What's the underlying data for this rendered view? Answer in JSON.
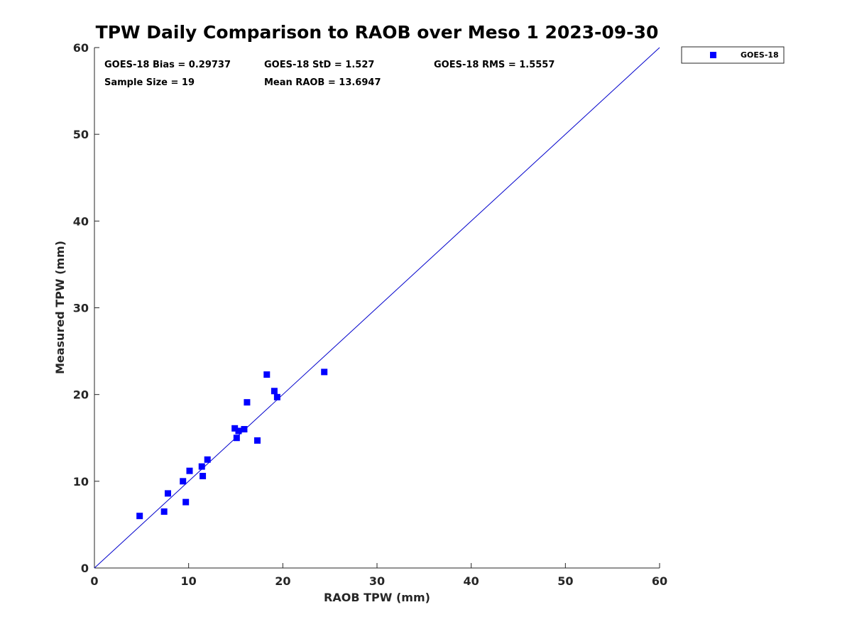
{
  "chart_data": {
    "type": "scatter",
    "title": "TPW Daily Comparison to RAOB over Meso 1 2023-09-30",
    "xlabel": "RAOB TPW (mm)",
    "ylabel": "Measured TPW (mm)",
    "xlim": [
      0,
      60
    ],
    "ylim": [
      0,
      60
    ],
    "xticks": [
      "0",
      "10",
      "20",
      "30",
      "40",
      "50",
      "60"
    ],
    "yticks": [
      "0",
      "10",
      "20",
      "30",
      "40",
      "50",
      "60"
    ],
    "grid": false,
    "legend_position": "outside-top-right",
    "reference_line": {
      "type": "one-to-one",
      "from": [
        0,
        0
      ],
      "to": [
        60,
        60
      ],
      "color": "#0000cc"
    },
    "stats": {
      "bias": "GOES-18 Bias = 0.29737",
      "std": "GOES-18 StD = 1.527",
      "rms": "GOES-18 RMS = 1.5557",
      "sample_size": "Sample Size = 19",
      "mean_raob": "Mean RAOB = 13.6947"
    },
    "series": [
      {
        "name": "GOES-18",
        "color": "#0000ff",
        "marker": "square",
        "points": [
          {
            "x": 4.8,
            "y": 6.0
          },
          {
            "x": 7.4,
            "y": 6.5
          },
          {
            "x": 7.8,
            "y": 8.6
          },
          {
            "x": 9.4,
            "y": 10.0
          },
          {
            "x": 9.7,
            "y": 7.6
          },
          {
            "x": 10.1,
            "y": 11.2
          },
          {
            "x": 11.4,
            "y": 11.7
          },
          {
            "x": 11.5,
            "y": 10.6
          },
          {
            "x": 12.0,
            "y": 12.5
          },
          {
            "x": 14.9,
            "y": 16.1
          },
          {
            "x": 15.1,
            "y": 15.0
          },
          {
            "x": 15.3,
            "y": 15.8
          },
          {
            "x": 15.9,
            "y": 16.0
          },
          {
            "x": 16.2,
            "y": 19.1
          },
          {
            "x": 17.3,
            "y": 14.7
          },
          {
            "x": 18.3,
            "y": 22.3
          },
          {
            "x": 19.1,
            "y": 20.4
          },
          {
            "x": 19.4,
            "y": 19.7
          },
          {
            "x": 24.4,
            "y": 22.6
          }
        ]
      }
    ]
  }
}
